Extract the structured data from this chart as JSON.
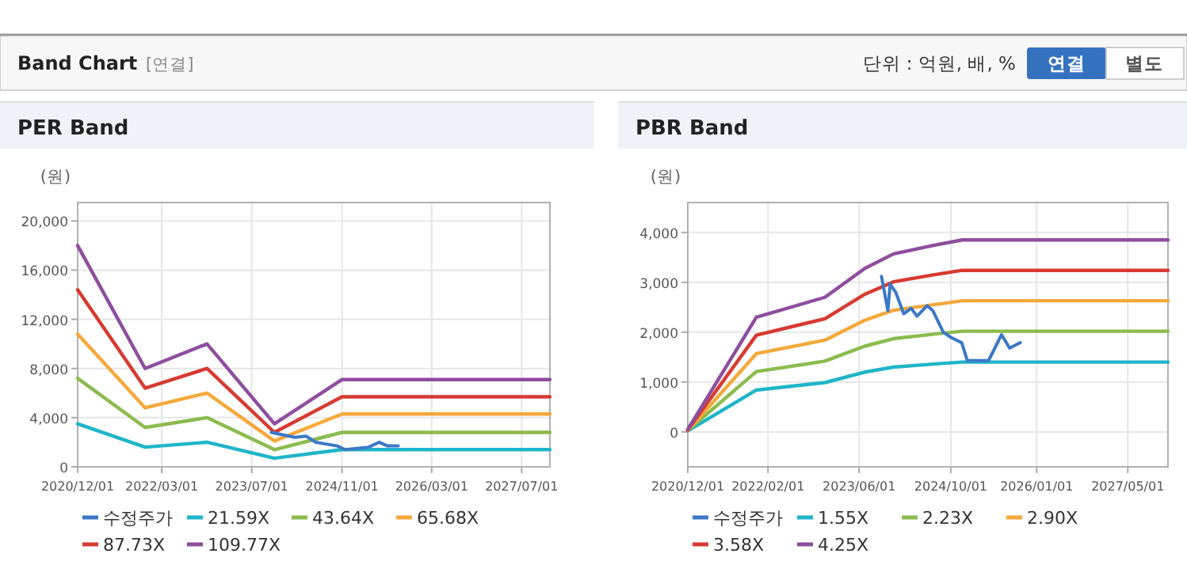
{
  "chart_data": [
    {
      "type": "other",
      "title": "Band Chart",
      "subtitle": "[연결]",
      "annotations": [
        "단위 : 억원, 배, %",
        "연결",
        "별도"
      ]
    },
    {
      "type": "line",
      "title": "PER Band",
      "ylabel": "(원)",
      "xlim": [
        "2020-12-01",
        "2027-12-01"
      ],
      "ylim": [
        0,
        21500
      ],
      "xticks": [
        {
          "value": "2020-12-01",
          "label": "2020/12/01"
        },
        {
          "value": "2022-03-01",
          "label": "2022/03/01"
        },
        {
          "value": "2023-07-01",
          "label": "2023/07/01"
        },
        {
          "value": "2024-11-01",
          "label": "2024/11/01"
        },
        {
          "value": "2026-03-01",
          "label": "2026/03/01"
        },
        {
          "value": "2027-07-01",
          "label": "2027/07/01"
        }
      ],
      "yticks": [
        0,
        {
          "value": 4000,
          "label": "4,000"
        },
        {
          "value": 8000,
          "label": "8,000"
        },
        {
          "value": 12000,
          "label": "12,000"
        },
        {
          "value": 16000,
          "label": "16,000"
        },
        {
          "value": 20000,
          "label": "20,000"
        }
      ],
      "grid": true,
      "legend": "bottom",
      "marker": "none",
      "line_style": "solid",
      "series": [
        {
          "name": "수정주가",
          "color": "#3c78c8",
          "x": [
            "2023-10-15",
            "2024-02-20",
            "2024-04-20",
            "2024-06-12",
            "2024-10-06",
            "2024-11-18",
            "2025-03-25",
            "2025-05-20",
            "2025-07-05",
            "2025-09-01"
          ],
          "values": [
            2800,
            2400,
            2500,
            2000,
            1700,
            1400,
            1600,
            2000,
            1700,
            1700
          ]
        },
        {
          "name": "21.59X",
          "color": "#1fb5c8",
          "x": [
            "2020-12-01",
            "2021-12-01",
            "2022-11-01",
            "2023-11-01",
            "2024-11-01",
            "2027-12-01"
          ],
          "values": [
            3500,
            1600,
            2000,
            700,
            1400,
            1400
          ]
        },
        {
          "name": "43.64X",
          "color": "#8cbb4e",
          "x": [
            "2020-12-01",
            "2021-12-01",
            "2022-11-01",
            "2023-11-01",
            "2024-11-01",
            "2027-12-01"
          ],
          "values": [
            7200,
            3200,
            4000,
            1400,
            2800,
            2800
          ]
        },
        {
          "name": "65.68X",
          "color": "#f4a93b",
          "x": [
            "2020-12-01",
            "2021-12-01",
            "2022-11-01",
            "2023-11-01",
            "2024-11-01",
            "2027-12-01"
          ],
          "values": [
            10800,
            4800,
            6000,
            2100,
            4300,
            4300
          ]
        },
        {
          "name": "87.73X",
          "color": "#d73a32",
          "x": [
            "2020-12-01",
            "2021-12-01",
            "2022-11-01",
            "2023-11-01",
            "2024-11-01",
            "2027-12-01"
          ],
          "values": [
            14400,
            6400,
            8000,
            2800,
            5700,
            5700
          ]
        },
        {
          "name": "109.77X",
          "color": "#8e4e9e",
          "x": [
            "2020-12-01",
            "2021-12-01",
            "2022-11-01",
            "2023-11-01",
            "2024-11-01",
            "2027-12-01"
          ],
          "values": [
            18000,
            8000,
            10000,
            3500,
            7100,
            7100
          ]
        }
      ]
    },
    {
      "type": "line",
      "title": "PBR Band",
      "ylabel": "(원)",
      "xlim": [
        "2020-12-01",
        "2027-12-01"
      ],
      "ylim": [
        -700,
        4600
      ],
      "xticks": [
        {
          "value": "2020-12-01",
          "label": "2020/12/01"
        },
        {
          "value": "2022-02-01",
          "label": "2022/02/01"
        },
        {
          "value": "2023-06-01",
          "label": "2023/06/01"
        },
        {
          "value": "2024-10-01",
          "label": "2024/10/01"
        },
        {
          "value": "2026-01-01",
          "label": "2026/01/01"
        },
        {
          "value": "2027-05-01",
          "label": "2027/05/01"
        }
      ],
      "yticks": [
        0,
        {
          "value": 1000,
          "label": "1,000"
        },
        {
          "value": 2000,
          "label": "2,000"
        },
        {
          "value": 3000,
          "label": "3,000"
        },
        {
          "value": 4000,
          "label": "4,000"
        }
      ],
      "grid": true,
      "legend": "bottom",
      "marker": "none",
      "line_style": "solid",
      "series": [
        {
          "name": "수정주가",
          "color": "#3c78c8",
          "x": [
            "2023-09-28",
            "2023-11-01",
            "2023-11-13",
            "2023-12-13",
            "2024-01-24",
            "2024-03-04",
            "2024-04-04",
            "2024-05-28",
            "2024-06-28",
            "2024-08-22",
            "2024-10-04",
            "2024-11-28",
            "2024-12-28",
            "2025-04-20",
            "2025-06-28",
            "2025-08-10",
            "2025-10-06"
          ],
          "values": [
            3120,
            2430,
            2960,
            2800,
            2370,
            2480,
            2320,
            2530,
            2430,
            2000,
            1890,
            1790,
            1430,
            1430,
            1950,
            1680,
            1790
          ]
        },
        {
          "name": "1.55X",
          "color": "#1fb5c8",
          "x": [
            "2020-12-01",
            "2021-12-01",
            "2022-12-01",
            "2023-07-01",
            "2023-12-01",
            "2024-07-01",
            "2024-12-01",
            "2027-12-01"
          ],
          "values": [
            20,
            840,
            990,
            1200,
            1300,
            1360,
            1400,
            1400
          ]
        },
        {
          "name": "2.23X",
          "color": "#8cbb4e",
          "x": [
            "2020-12-01",
            "2021-12-01",
            "2022-12-01",
            "2023-07-01",
            "2023-12-01",
            "2024-07-01",
            "2024-12-01",
            "2027-12-01"
          ],
          "values": [
            30,
            1210,
            1420,
            1720,
            1870,
            1960,
            2020,
            2020
          ]
        },
        {
          "name": "2.90X",
          "color": "#f4a93b",
          "x": [
            "2020-12-01",
            "2021-12-01",
            "2022-12-01",
            "2023-07-01",
            "2023-12-01",
            "2024-07-01",
            "2024-12-01",
            "2027-12-01"
          ],
          "values": [
            30,
            1570,
            1840,
            2240,
            2440,
            2550,
            2630,
            2630
          ]
        },
        {
          "name": "3.58X",
          "color": "#d73a32",
          "x": [
            "2020-12-01",
            "2021-12-01",
            "2022-12-01",
            "2023-07-01",
            "2023-12-01",
            "2024-07-01",
            "2024-12-01",
            "2027-12-01"
          ],
          "values": [
            40,
            1940,
            2270,
            2760,
            3010,
            3150,
            3240,
            3240
          ]
        },
        {
          "name": "4.25X",
          "color": "#8e4e9e",
          "x": [
            "2020-12-01",
            "2021-12-01",
            "2022-12-01",
            "2023-07-01",
            "2023-12-01",
            "2024-07-01",
            "2024-12-01",
            "2027-12-01"
          ],
          "values": [
            50,
            2300,
            2700,
            3280,
            3570,
            3740,
            3850,
            3850
          ]
        }
      ]
    }
  ]
}
